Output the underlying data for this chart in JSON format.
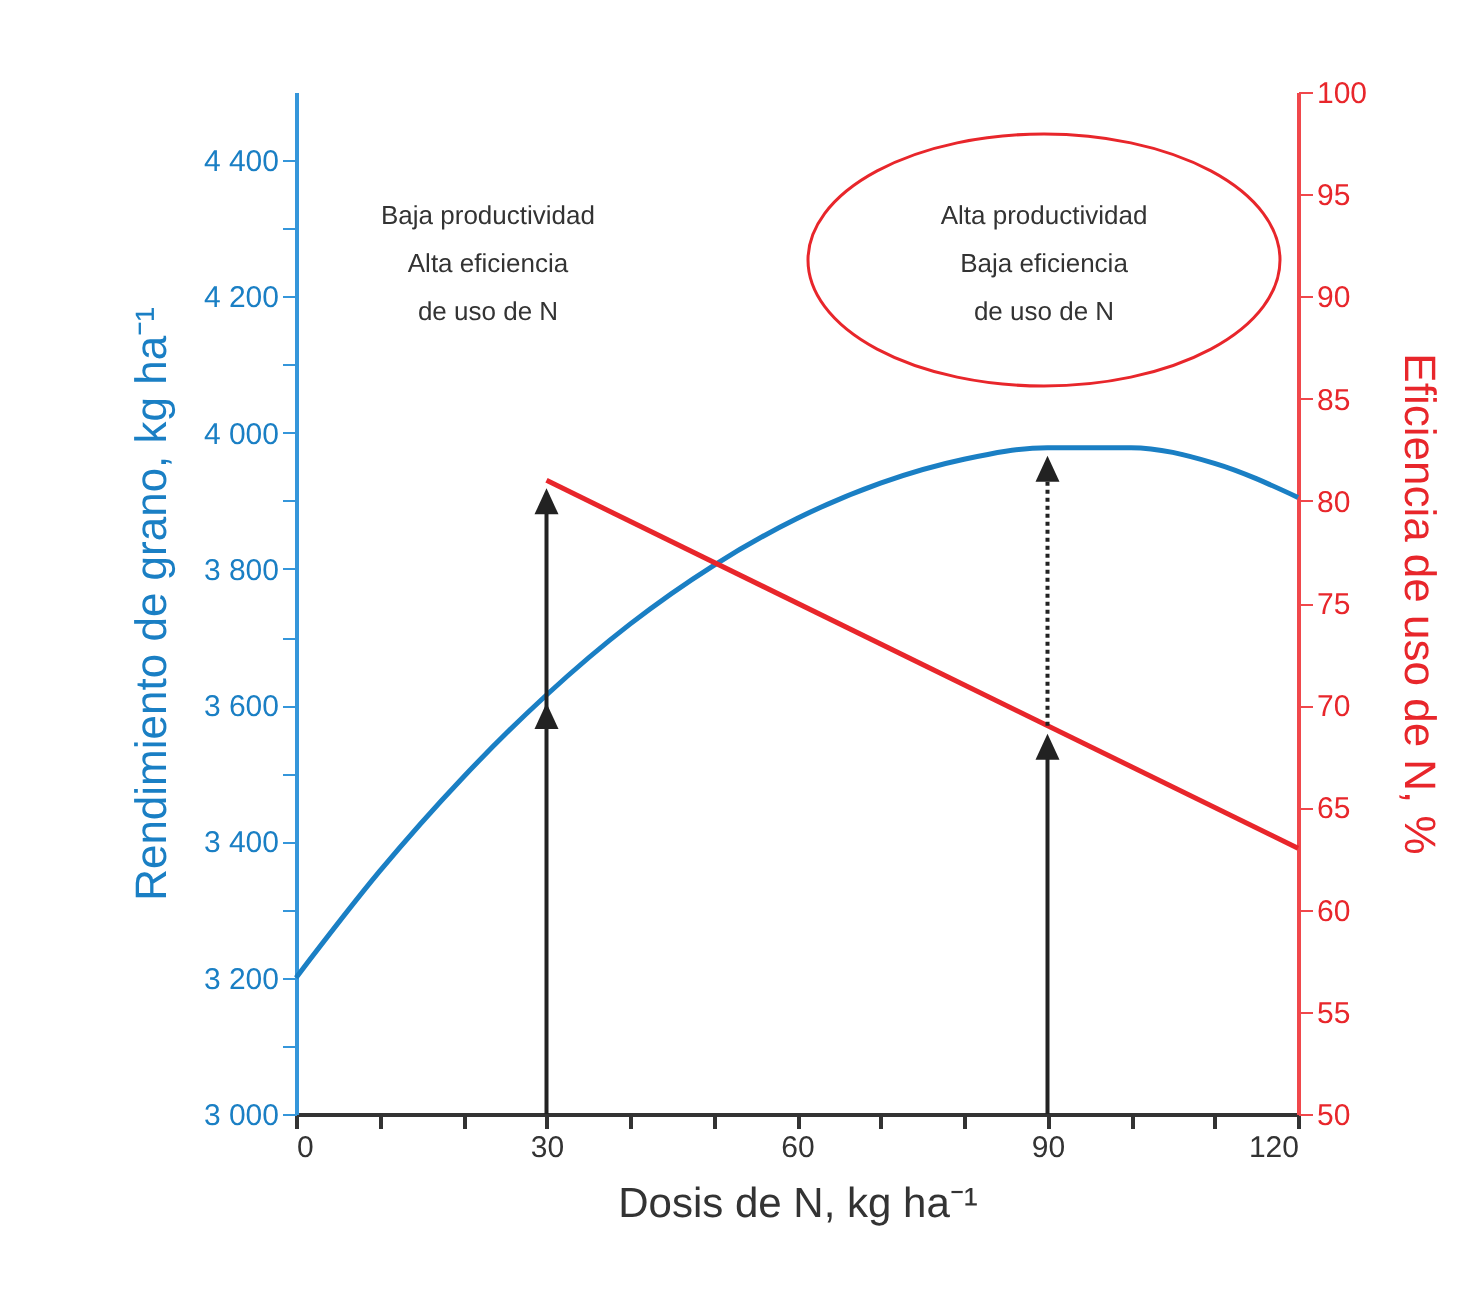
{
  "chart_data": {
    "type": "line",
    "xlabel": "Dosis de N, kg ha⁻¹",
    "ylabel": "Rendimiento de grano, kg ha⁻¹",
    "y2label": "Eficiencia de uso de N, %",
    "series": [
      {
        "color": "#1a7fc4",
        "x": [
          0,
          10,
          20,
          30,
          40,
          50,
          60,
          70,
          80,
          90,
          100,
          110,
          120
        ],
        "values": [
          3200,
          3356,
          3494,
          3615,
          3719,
          3805,
          3874,
          3926,
          3961,
          3978,
          3978,
          3955,
          3905
        ]
      },
      {
        "color": "#e8262b",
        "axis": "y2",
        "x": [
          30,
          120
        ],
        "values": [
          81,
          63
        ]
      }
    ],
    "xlim": [
      0,
      120
    ],
    "xticks": [
      0,
      {
        "value": 10,
        "label": null
      },
      {
        "value": 20,
        "label": null
      },
      30,
      {
        "value": 40,
        "label": null
      },
      {
        "value": 50,
        "label": null
      },
      60,
      {
        "value": 70,
        "label": null
      },
      {
        "value": 80,
        "label": null
      },
      90,
      {
        "value": 100,
        "label": null
      },
      {
        "value": 110,
        "label": null
      },
      120
    ],
    "ylim": [
      3000,
      4500
    ],
    "yticks": [
      {
        "value": 3000,
        "label": "3 000"
      },
      {
        "value": 3100,
        "label": null
      },
      {
        "value": 3200,
        "label": "3 200"
      },
      {
        "value": 3300,
        "label": null
      },
      {
        "value": 3400,
        "label": "3 400"
      },
      {
        "value": 3500,
        "label": null
      },
      {
        "value": 3600,
        "label": "3 600"
      },
      {
        "value": 3700,
        "label": null
      },
      {
        "value": 3800,
        "label": "3 800"
      },
      {
        "value": 3900,
        "label": null
      },
      {
        "value": 4000,
        "label": "4 000"
      },
      {
        "value": 4100,
        "label": null
      },
      {
        "value": 4200,
        "label": "4 200"
      },
      {
        "value": 4300,
        "label": null
      },
      {
        "value": 4400,
        "label": "4 400"
      }
    ],
    "y2lim": [
      50,
      100
    ],
    "y2ticks": [
      50,
      55,
      60,
      65,
      70,
      75,
      80,
      85,
      90,
      95,
      100
    ],
    "ref_lines": [
      {
        "axis": "x",
        "value": 30
      },
      {
        "axis": "x",
        "value": 90
      }
    ],
    "annotations": [
      "Baja productividad\nAlta eficiencia\nde uso de N",
      "Alta productividad\nBaja eficiencia\nde uso de N"
    ],
    "grid": false,
    "marker": "none",
    "line_style": "solid"
  }
}
